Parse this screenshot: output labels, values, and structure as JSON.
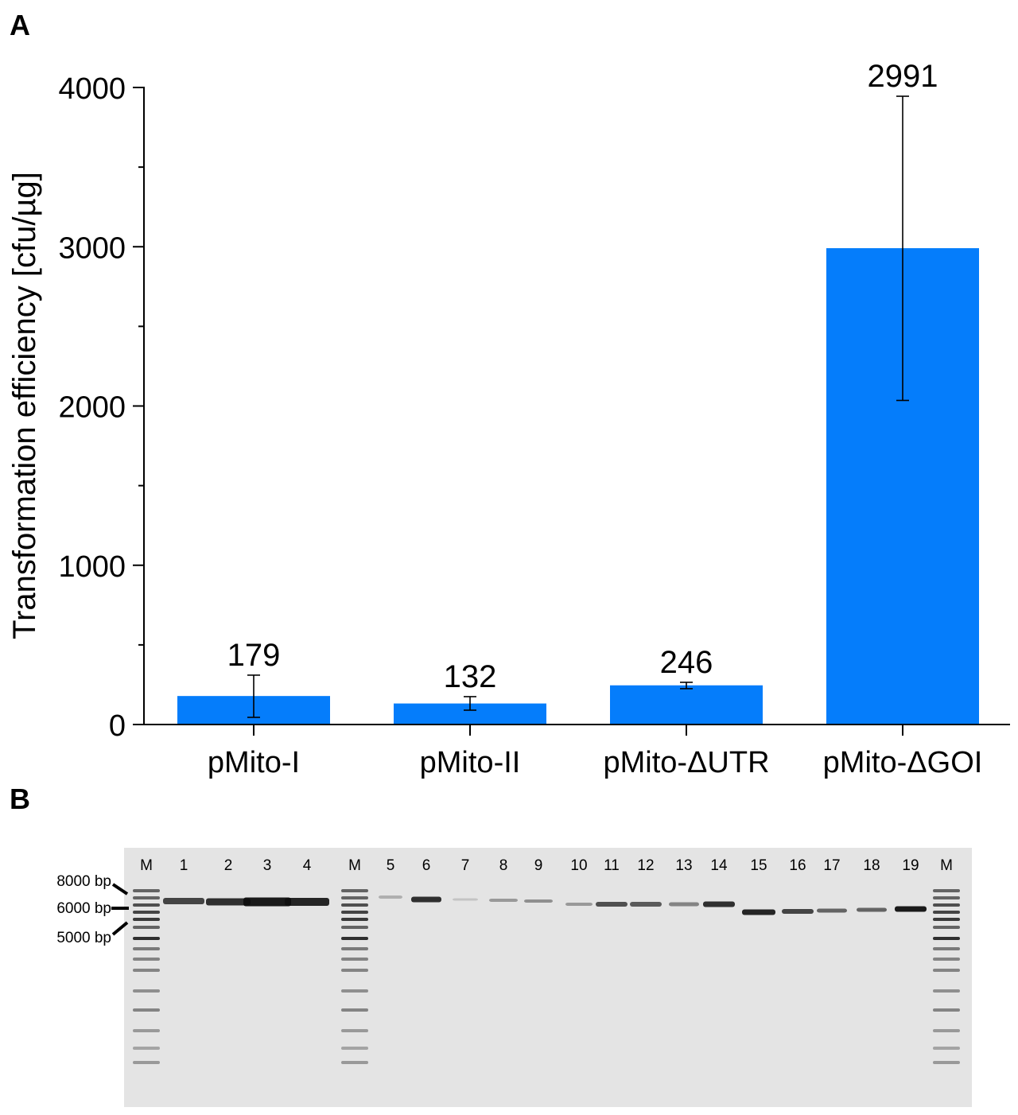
{
  "panels": {
    "a_label": "A",
    "b_label": "B"
  },
  "chart_data": {
    "type": "bar",
    "ylabel": "Transformation efficiency [cfu/µg]",
    "xlabel": "",
    "ylim": [
      0,
      4000
    ],
    "yticks": [
      0,
      1000,
      2000,
      3000,
      4000
    ],
    "y_minor_step": 500,
    "categories": [
      "pMito-I",
      "pMito-II",
      "pMito-ΔUTR",
      "pMito-ΔGOI"
    ],
    "values": [
      179,
      132,
      246,
      2991
    ],
    "value_labels": [
      "179",
      "132",
      "246",
      "2991"
    ],
    "error_low": [
      45,
      90,
      225,
      2035
    ],
    "error_high": [
      310,
      175,
      265,
      3945
    ],
    "bar_color": "#057dfb",
    "grid": false
  },
  "gel": {
    "lane_labels": [
      "M",
      "1",
      "2",
      "3",
      "4",
      "M",
      "5",
      "6",
      "7",
      "8",
      "9",
      "10",
      "11",
      "12",
      "13",
      "14",
      "15",
      "16",
      "17",
      "18",
      "19",
      "M"
    ],
    "size_markers": [
      "8000 bp",
      "6000 bp",
      "5000 bp"
    ],
    "background_color": "#e4e4e4",
    "band_color": "#0f0f0f"
  }
}
